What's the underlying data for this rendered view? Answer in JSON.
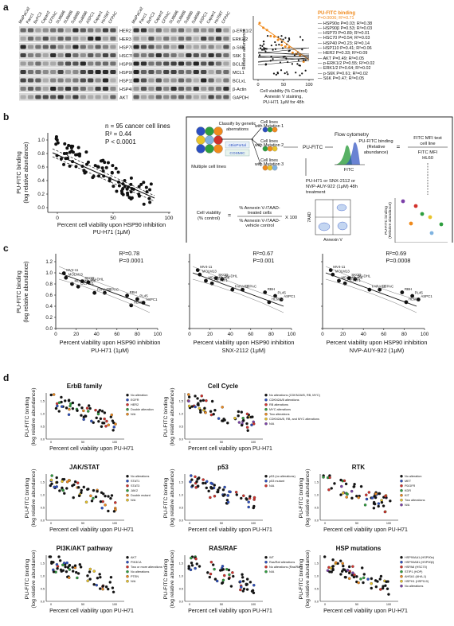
{
  "panels": {
    "a": {
      "letter": "a",
      "lanes": [
        "MiaPaCa2",
        "Panc1",
        "BxPC3",
        "Capan2",
        "CFPAC",
        "SU8686",
        "SU8686",
        "Su8686",
        "Su8686",
        "ASPC1",
        "Capan1",
        "Hs766T",
        "CFPAC"
      ],
      "left_blot_labels": [
        "HER2",
        "HER3",
        "HSP70",
        "HSC70",
        "HSP90α",
        "HSP90β",
        "HSP110",
        "HSP40",
        "AKT"
      ],
      "right_blot_labels": [
        "p-ERK1/2",
        "ERK1/2",
        "p-S6K",
        "S6K",
        "BCL2",
        "MCL1",
        "BCLxL",
        "β-Actin",
        "GAPDH"
      ],
      "scatter": {
        "ylabel": "Relative abundance",
        "xlabel_lines": [
          "Cell viability (% Control)",
          "Annexin V staining,",
          "PU-H71 1μM for 48h"
        ],
        "xticks": [
          "0",
          "50",
          "100"
        ],
        "legend_title": "PU-FITC binding",
        "legend_title_stats": "P=0.0006; R²=0.71",
        "legend_items": [
          "HSP90α P=0.03; R²=0.38",
          "HSP90β P=0.53; R²=0.03",
          "HSP70 P=0.89; R²=0.01",
          "HSC70 P=0.54; R²=0.03",
          "HSP40 P=0.23; R²=0.14",
          "HSP110 P=0.41; R²=0.06",
          "HER2 P=0.33; R²=0.09",
          "AKT P=0.49; R²=0.05",
          "p-ERK1/2 P=0.55; R²=0.02",
          "ERK1/2 P=0.64; R²=0.02",
          "p-S6K P=0.61; R²=0.02",
          "S6K P=0.47; R²=0.05"
        ]
      }
    },
    "b": {
      "letter": "b",
      "stats": [
        "n = 95 cancer cell lines",
        "R² = 0.44",
        "P < 0.0001"
      ],
      "ylabel_lines": [
        "PU-FITC binding",
        "(log relative abundance)"
      ],
      "xlabel_lines": [
        "Percent cell viability upon HSP90 inhibition",
        "PU-H71 (1μM)"
      ],
      "yticks": [
        "0.0",
        "0.2",
        "0.4",
        "0.6",
        "0.8",
        "1.0"
      ],
      "xticks": [
        "0",
        "50",
        "100"
      ],
      "schematic": {
        "classify": "Classify by genetic aberrations",
        "db1": "cBioPortal",
        "db2": "COSMIC",
        "multiple": "Multiple cell lines",
        "mut1": "Cell lines with Mutation 1",
        "mut2": "Cell lines with Mutation 2",
        "mut3": "Cell lines with Mutation 3",
        "pufitc": "PU-FITC",
        "flow": "Flow cytometry",
        "fitc": "FITC",
        "binding": "PU-FITC binding (Relative abundance)",
        "equals": "=",
        "mfi_top": "FITC MFI test cell line",
        "mfi_bottom": "FITC MFI HL60",
        "treatment": "PU-H71 or SNX-2112 or NVP-AUY-922 (1μM) 48h treatment",
        "viability": "Cell viability (% control)",
        "frac_top": "% Annexin V-/7AAD- treated cells",
        "frac_bottom": "% Annexin V-/7AAD- vehicle control",
        "times": "X 100",
        "aad": "7AAD",
        "annexin": "Annexin V",
        "mini_ylabel": "PU-FITC binding (Relative abundance)",
        "mini_xlabel": "Cell viability(% control)",
        "mini_xticks": [
          "20",
          "40",
          "60",
          "80"
        ]
      }
    },
    "c": {
      "letter": "c",
      "ylabel_lines": [
        "PU-FITC binding",
        "(log relative abundance)"
      ],
      "yticks": [
        "0.0",
        "0.2",
        "0.4",
        "0.6",
        "0.8",
        "1.0",
        "1.2"
      ],
      "xticks": [
        "0",
        "20",
        "40",
        "60",
        "80",
        "100"
      ],
      "xlabel": "Percent viability upon HSP90 inhibition",
      "plots": [
        {
          "stats": [
            "R²=0.78",
            "P=0.0001"
          ],
          "drug": "PU-H71 (1μM)"
        },
        {
          "stats": [
            "R²=0.67",
            "P=0.001"
          ],
          "drug": "SNX-2112 (1μM)"
        },
        {
          "stats": [
            "R²=0.69",
            "P=0.0008"
          ],
          "drug": "NVP-AUY-922 (1μM)"
        }
      ]
    },
    "d": {
      "letter": "d",
      "ylabel_lines": [
        "PU-FITC binding",
        "(log relative abundance)"
      ],
      "xlabel": "Percent cell viability upon PU-H71",
      "plots": [
        {
          "title": "ErbB family",
          "legend": [
            "No alteration",
            "EGFR",
            "HER2",
            "Double alteration",
            "N/A"
          ]
        },
        {
          "title": "Cell Cycle",
          "legend": [
            "No alterations (CDKN2A/B, RB, MYC)",
            "CDKN2A/B alterations",
            "RB alterations",
            "MYC alterations",
            "Two alterations",
            "CDKN2A/B, RB, and MYC alterations",
            "N/A"
          ]
        },
        {
          "title": "JAK/STAT",
          "legend": [
            "No alterations",
            "STAT1",
            "STAT3",
            "JAK2",
            "Double mutant",
            "N/A"
          ]
        },
        {
          "title": "p53",
          "legend": [
            "p53 (no alterations)",
            "p53 mutant",
            "N/A"
          ]
        },
        {
          "title": "RTK",
          "legend": [
            "No alteration",
            "MET",
            "PDGFR",
            "KDR",
            "KIT",
            "Two alterations",
            "N/A"
          ]
        },
        {
          "title": "PI3K/AKT pathway",
          "legend": [
            "AKT",
            "PIK3CA",
            "Two or more alterations",
            "No alterations",
            "PTEN",
            "N/A"
          ]
        },
        {
          "title": "RAS/RAF",
          "legend": [
            "WT",
            "Ras/Raf alterations",
            "No alterations (Ras/Raf)",
            "N/A"
          ]
        },
        {
          "title": "HSP mutations",
          "legend": [
            "HSP90AA1 (HSP90α)",
            "HSP90AB1 (HSP90β)",
            "HSPA8 (HSC70)",
            "STIP1 (HOP)",
            "AHSA1 (AHA-1)",
            "HSPH1 (HSP110)",
            "No alterations"
          ]
        }
      ]
    }
  },
  "colors": {
    "orange": "#f08a1c",
    "text": "#111111",
    "green": "#2e9e3e",
    "blue": "#2b4fc1",
    "red": "#d2312b",
    "yellow": "#e8c32a",
    "purple": "#7b3fa8"
  }
}
